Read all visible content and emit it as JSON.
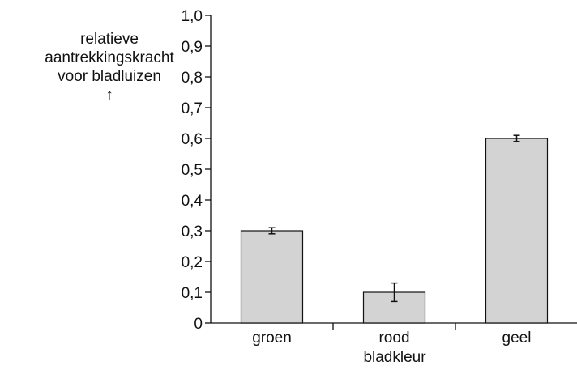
{
  "chart_data": {
    "type": "bar",
    "title": "",
    "ylabel_lines": [
      "relatieve",
      "aantrekkingskracht",
      "voor bladluizen"
    ],
    "ylabel_arrow": "↑",
    "xlabel": "bladkleur",
    "categories": [
      "groen",
      "rood",
      "geel"
    ],
    "values": [
      0.3,
      0.1,
      0.6
    ],
    "error_low": [
      0.29,
      0.07,
      0.59
    ],
    "error_high": [
      0.31,
      0.13,
      0.61
    ],
    "ylim": [
      0,
      1.0
    ],
    "yticks": [
      0,
      0.1,
      0.2,
      0.3,
      0.4,
      0.5,
      0.6,
      0.7,
      0.8,
      0.9,
      1.0
    ],
    "ytick_labels": [
      "0",
      "0,1",
      "0,2",
      "0,3",
      "0,4",
      "0,5",
      "0,6",
      "0,7",
      "0,8",
      "0,9",
      "1,0"
    ],
    "grid": false,
    "bar_color": "#d3d3d3",
    "edge_color": "#111111"
  }
}
